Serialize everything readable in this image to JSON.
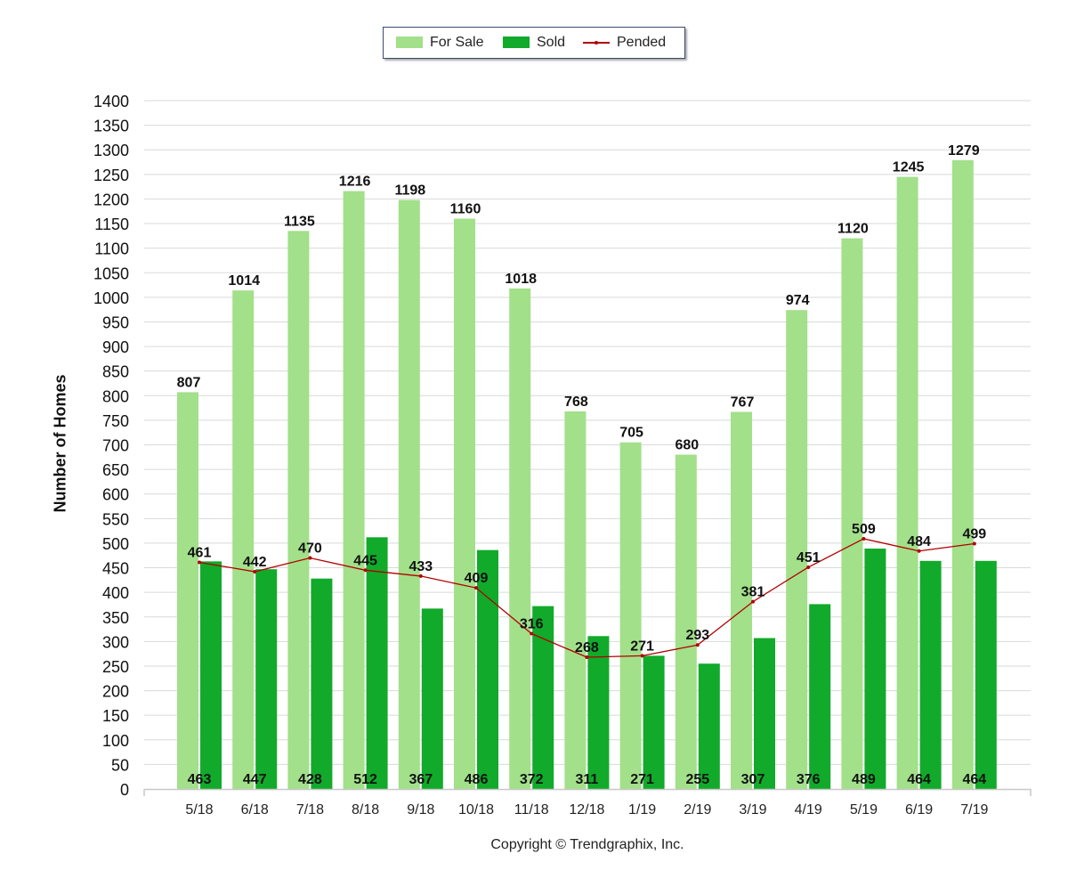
{
  "legend": {
    "for_sale": "For Sale",
    "sold": "Sold",
    "pended": "Pended"
  },
  "copyright": "Copyright © Trendgraphix, Inc.",
  "colors": {
    "for_sale": "#a2e08a",
    "sold": "#11aa2a",
    "pended": "#b20000",
    "grid": "#d9d9d9"
  },
  "chart_data": {
    "type": "bar",
    "ylabel": "Number of Homes",
    "xlabel": "",
    "ylim": [
      0,
      1400
    ],
    "ytick_step": 50,
    "grid": true,
    "legend_position": "top-center",
    "categories": [
      "5/18",
      "6/18",
      "7/18",
      "8/18",
      "9/18",
      "10/18",
      "11/18",
      "12/18",
      "1/19",
      "2/19",
      "3/19",
      "4/19",
      "5/19",
      "6/19",
      "7/19"
    ],
    "series": [
      {
        "name": "For Sale",
        "type": "bar",
        "values": [
          807,
          1014,
          1135,
          1216,
          1198,
          1160,
          1018,
          768,
          705,
          680,
          767,
          974,
          1120,
          1245,
          1279
        ]
      },
      {
        "name": "Sold",
        "type": "bar",
        "values": [
          463,
          447,
          428,
          512,
          367,
          486,
          372,
          311,
          271,
          255,
          307,
          376,
          489,
          464,
          464
        ]
      },
      {
        "name": "Pended",
        "type": "line",
        "values": [
          461,
          442,
          470,
          445,
          433,
          409,
          316,
          268,
          271,
          293,
          381,
          451,
          509,
          484,
          499
        ]
      }
    ]
  }
}
